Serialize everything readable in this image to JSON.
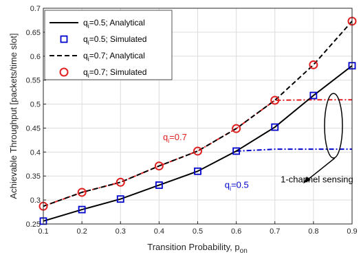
{
  "chart_data": {
    "type": "line",
    "xlabel": {
      "main": "Transition Probability, p",
      "sub": "on"
    },
    "ylabel": "Achievable Throughput [packets/time slot]",
    "xlim": [
      0.1,
      0.9
    ],
    "ylim": [
      0.25,
      0.7
    ],
    "x_ticks": [
      "0.1",
      "0.2",
      "0.3",
      "0.4",
      "0.5",
      "0.6",
      "0.7",
      "0.8",
      "0.9"
    ],
    "y_ticks": [
      "0.25",
      "0.3",
      "0.35",
      "0.4",
      "0.45",
      "0.5",
      "0.55",
      "0.6",
      "0.65",
      "0.7"
    ],
    "grid": true,
    "legend_position": "top-left",
    "series": [
      {
        "name": "q_i=0.5; Analytical",
        "label_pre": "q",
        "label_sub": "i",
        "label_post": "=0.5; Analytical",
        "style": "solid",
        "color": "#000000",
        "x": [
          0.1,
          0.2,
          0.3,
          0.4,
          0.5,
          0.6,
          0.7,
          0.8,
          0.9
        ],
        "y": [
          0.256,
          0.28,
          0.302,
          0.331,
          0.36,
          0.402,
          0.452,
          0.518,
          0.58
        ]
      },
      {
        "name": "q_i=0.5; Simulated",
        "label_pre": "q",
        "label_sub": "i",
        "label_post": "=0.5; Simulated",
        "style": "square",
        "color": "#0000cc",
        "x": [
          0.1,
          0.2,
          0.3,
          0.4,
          0.5,
          0.6,
          0.7,
          0.8,
          0.9
        ],
        "y": [
          0.256,
          0.28,
          0.302,
          0.331,
          0.36,
          0.402,
          0.452,
          0.518,
          0.58
        ]
      },
      {
        "name": "q_i=0.7; Analytical",
        "label_pre": "q",
        "label_sub": "i",
        "label_post": "=0.7; Analytical",
        "style": "dashed",
        "color": "#000000",
        "x": [
          0.1,
          0.2,
          0.3,
          0.4,
          0.5,
          0.6,
          0.7,
          0.8,
          0.9
        ],
        "y": [
          0.287,
          0.316,
          0.337,
          0.371,
          0.402,
          0.449,
          0.508,
          0.582,
          0.673
        ]
      },
      {
        "name": "q_i=0.7; Simulated",
        "label_pre": "q",
        "label_sub": "i",
        "label_post": "=0.7; Simulated",
        "style": "circle",
        "color": "#e02020",
        "x": [
          0.1,
          0.2,
          0.3,
          0.4,
          0.5,
          0.6,
          0.7,
          0.8,
          0.9
        ],
        "y": [
          0.287,
          0.316,
          0.337,
          0.371,
          0.402,
          0.449,
          0.508,
          0.582,
          0.673
        ]
      }
    ],
    "one_channel_series": [
      {
        "color": "#e02020",
        "x": [
          0.1,
          0.2,
          0.3,
          0.4,
          0.5,
          0.6,
          0.7,
          0.8,
          0.9
        ],
        "y": [
          0.287,
          0.316,
          0.337,
          0.371,
          0.402,
          0.449,
          0.508,
          0.509,
          0.509
        ]
      },
      {
        "color": "#0000cc",
        "x": [
          0.6,
          0.7,
          0.8,
          0.9
        ],
        "y": [
          0.402,
          0.406,
          0.406,
          0.406
        ]
      }
    ],
    "annotations": [
      {
        "id": "q07",
        "pre": "q",
        "sub": "i",
        "post": "=0.7",
        "color": "#e02020",
        "x": 0.41,
        "y": 0.425
      },
      {
        "id": "q05",
        "pre": "q",
        "sub": "i",
        "post": "=0.5",
        "color": "#0000cc",
        "x": 0.57,
        "y": 0.325
      },
      {
        "id": "sensing",
        "text": "1-channel sensing",
        "color": "#000000",
        "x": 0.715,
        "y": 0.337
      }
    ]
  }
}
